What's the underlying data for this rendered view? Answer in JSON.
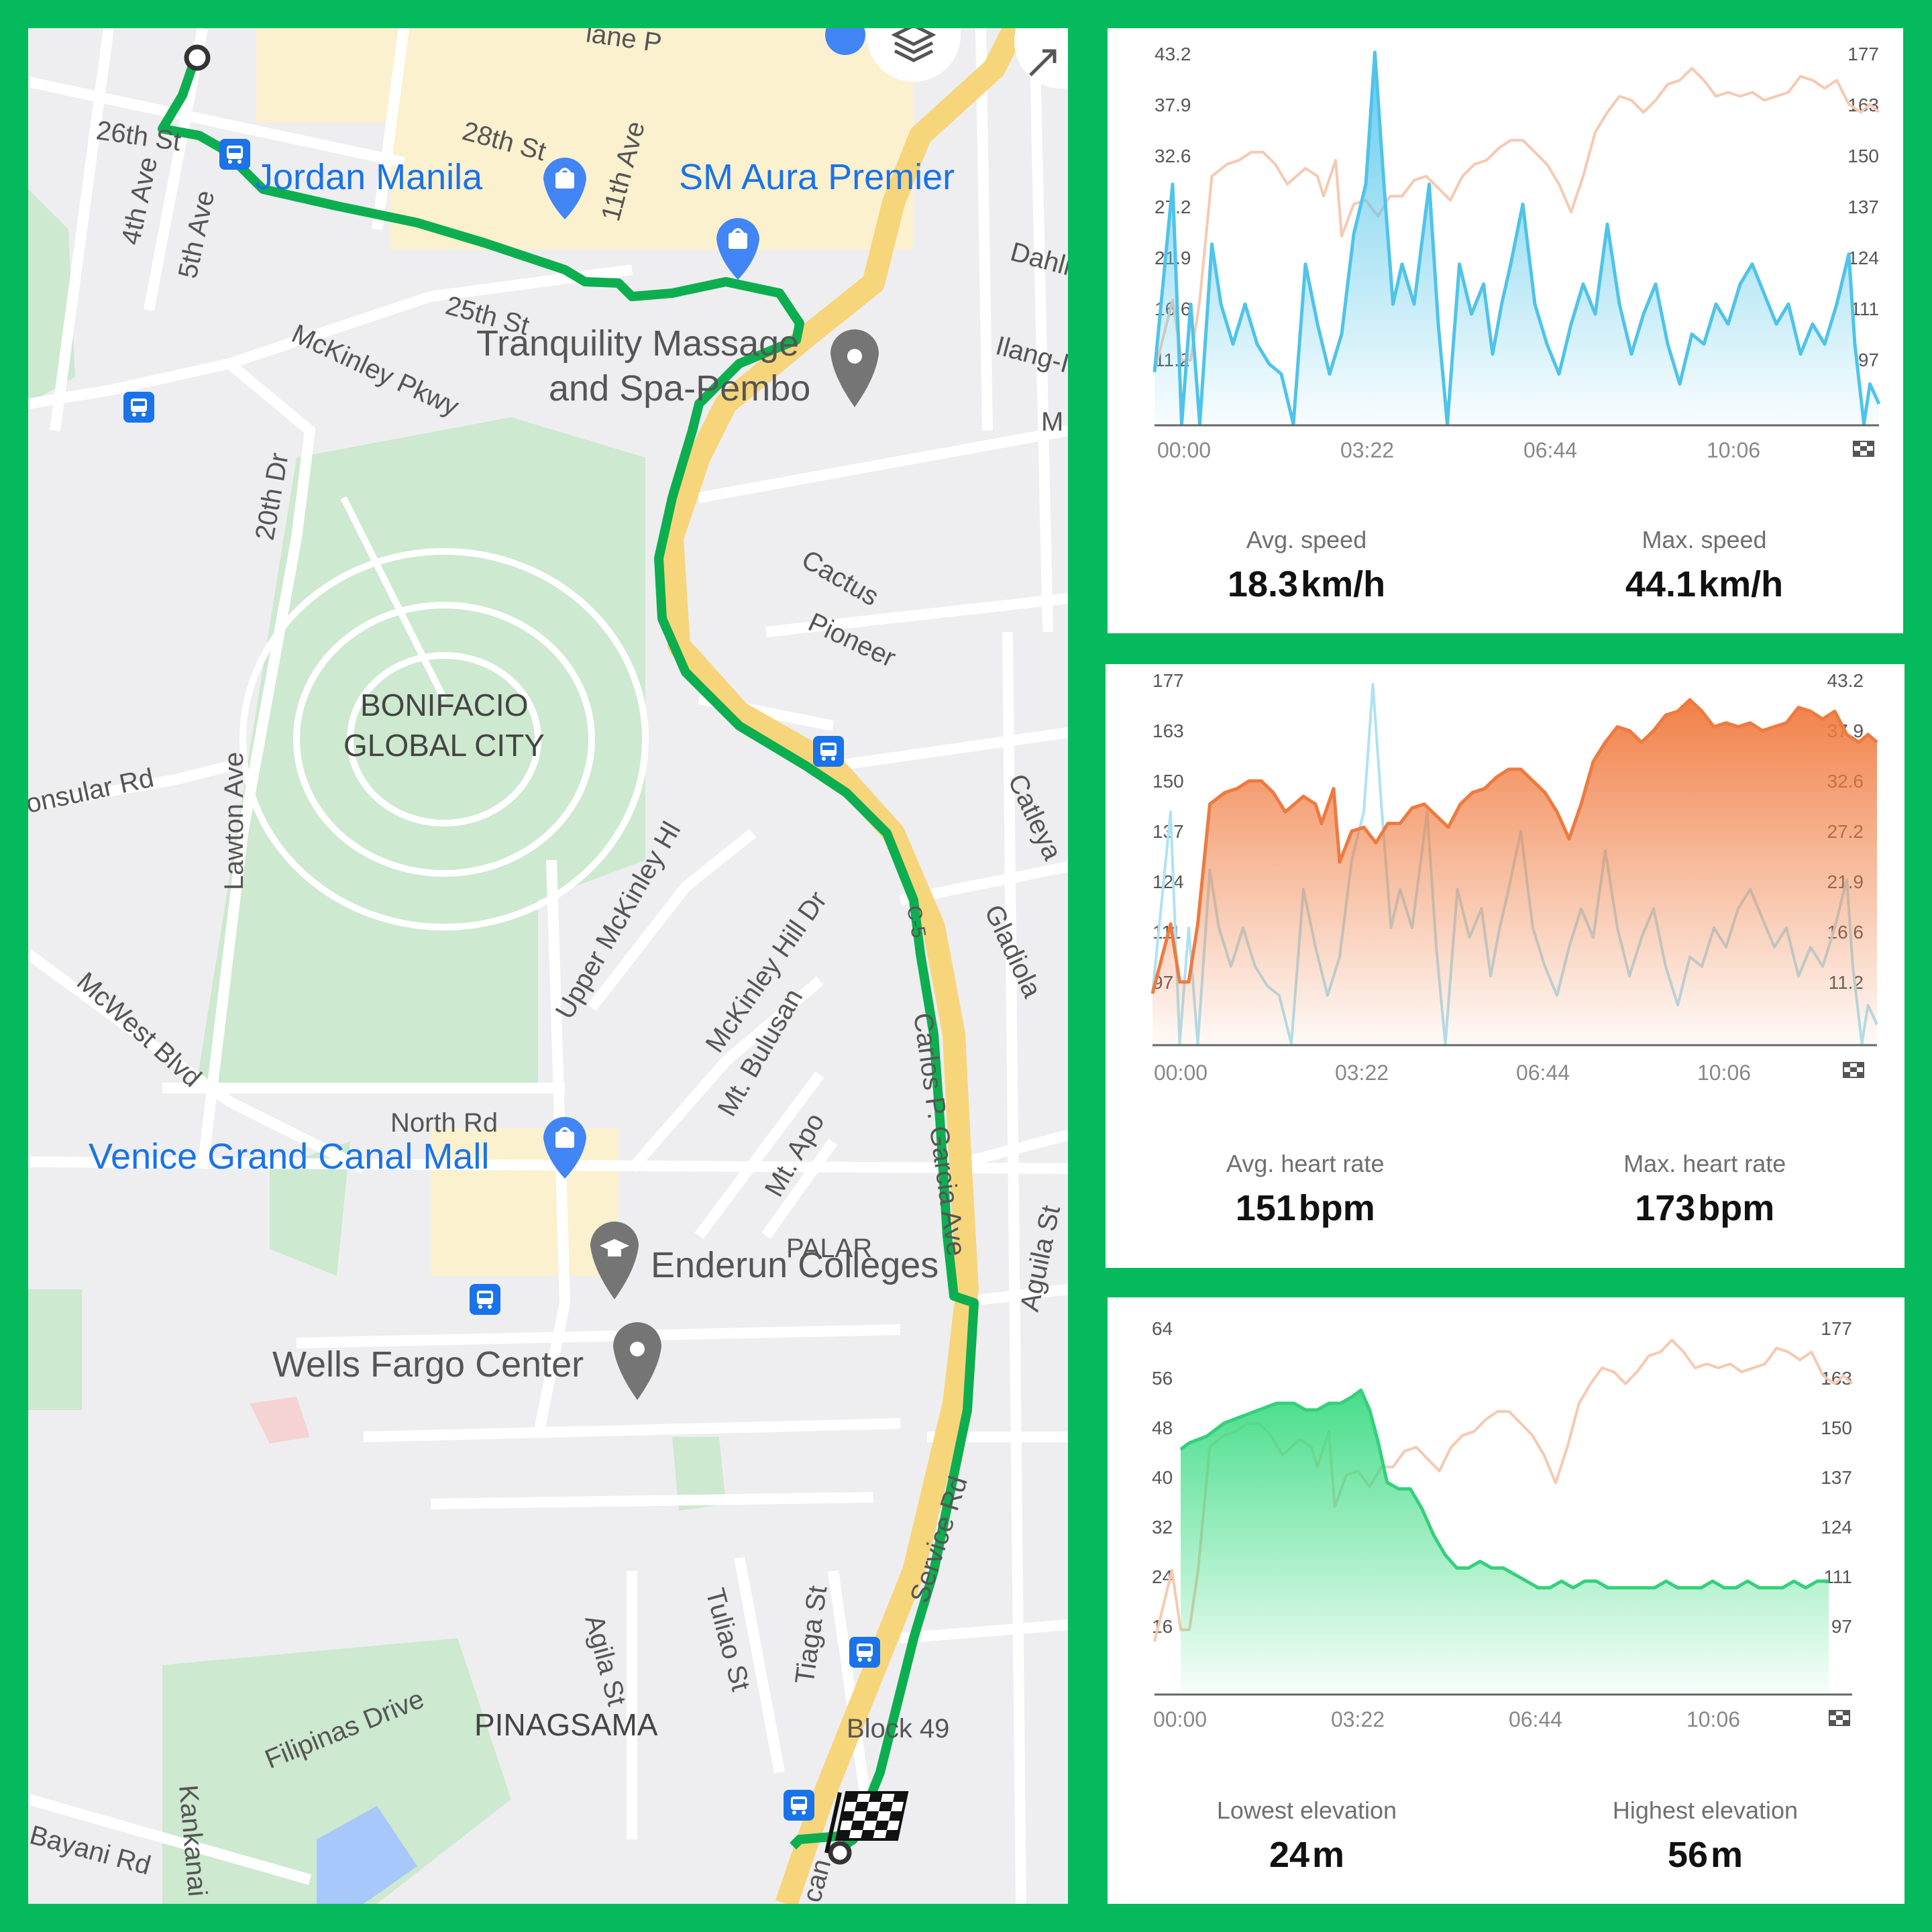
{
  "map": {
    "labels": {
      "st26": "26th St",
      "st28": "28th St",
      "ave4": "4th Ave",
      "ave5": "5th Ave",
      "ave11": "11th Ave",
      "st25": "25th St",
      "mckinley_pkwy": "McKinley Pkwy",
      "dahlia": "Dahli",
      "ilang": "Ilang-I",
      "m_cut": "M",
      "dr20": "20th Dr",
      "cactus": "Cactus",
      "pioneer": "Pioneer",
      "consular": "onsular Rd",
      "lawton": "Lawton Ave",
      "catleya": "Catleya",
      "upper_mckinley": "Upper McKinley Hl",
      "gladiola": "Gladiola",
      "mckinley_hill_dr": "McKinley Hill Dr",
      "c5": "C-5",
      "mcwest": "McWest Blvd",
      "north_rd": "North Rd",
      "mt_bulusan": "Mt. Bulusan",
      "mt_apo": "Mt. Apo",
      "carlos": "Carlos P. Garcia Ave",
      "palar": "PALAR",
      "aguila": "Aguila St",
      "service_rd": "Service Rd",
      "agila": "Agila St",
      "tuliao": "Tuliao St",
      "tiaga": "Tiaga St",
      "filipinas": "Filipinas Drive",
      "pinagsama": "PINAGSAMA",
      "block49": "Block 49",
      "kankanai": "Kankanai",
      "bayani": "Bayani Rd",
      "can": "can",
      "lane": "lane P",
      "bgc": "BONIFACIO",
      "bgc2": "GLOBAL CITY"
    },
    "pois": {
      "jordan": "Jordan Manila",
      "sm_aura": "SM Aura Premier",
      "tranquility_1": "Tranquility Massage",
      "tranquility_2": "and Spa-Pembo",
      "venice": "Venice Grand Canal Mall",
      "enderun": "Enderun Colleges",
      "wells": "Wells Fargo Center"
    },
    "colors": {
      "route": "#0DAE4F",
      "highway": "#F7D57A",
      "park": "#CDE9CF",
      "poi_blue": "#1A73E8",
      "commercial": "#FBF1CF"
    },
    "icons": [
      "start-point-icon",
      "finish-flag-icon",
      "bus-stop-icon",
      "shopping-bag-icon",
      "place-pin-icon",
      "school-icon",
      "layers-icon",
      "expand-icon"
    ]
  },
  "x_ticks": [
    "00:00",
    "03:22",
    "06:44",
    "10:06"
  ],
  "speed_panel": {
    "left_axis": [
      "43.2",
      "37.9",
      "32.6",
      "27.2",
      "21.9",
      "16.6",
      "11.2"
    ],
    "right_axis": [
      "177",
      "163",
      "150",
      "137",
      "124",
      "111",
      "97"
    ],
    "avg_label": "Avg. speed",
    "avg_value": "18.3",
    "avg_unit": "km/h",
    "max_label": "Max. speed",
    "max_value": "44.1",
    "max_unit": "km/h"
  },
  "hr_panel": {
    "left_axis": [
      "177",
      "163",
      "150",
      "137",
      "124",
      "111",
      "97"
    ],
    "right_axis": [
      "43.2",
      "37.9",
      "32.6",
      "27.2",
      "21.9",
      "16.6",
      "11.2"
    ],
    "avg_label": "Avg. heart rate",
    "avg_value": "151",
    "avg_unit": "bpm",
    "max_label": "Max. heart rate",
    "max_value": "173",
    "max_unit": "bpm"
  },
  "elev_panel": {
    "left_axis": [
      "64",
      "56",
      "48",
      "40",
      "32",
      "24",
      "16"
    ],
    "right_axis": [
      "177",
      "163",
      "150",
      "137",
      "124",
      "111",
      "97"
    ],
    "low_label": "Lowest elevation",
    "low_value": "24",
    "low_unit": "m",
    "high_label": "Highest elevation",
    "high_value": "56",
    "high_unit": "m"
  },
  "chart_data": [
    {
      "type": "area",
      "x_unit": "mm:ss",
      "x_ticks": [
        "00:00",
        "03:22",
        "06:44",
        "10:06"
      ],
      "primary": "speed",
      "primary_color": "#5AC8EC",
      "secondary": "heart_rate",
      "secondary_color": "#F6C9B0",
      "ylim_left": [
        6,
        43.2
      ],
      "ylim_right": [
        84,
        177
      ]
    },
    {
      "type": "area",
      "x_unit": "mm:ss",
      "x_ticks": [
        "00:00",
        "03:22",
        "06:44",
        "10:06"
      ],
      "primary": "heart_rate",
      "primary_color": "#F07A3E",
      "secondary": "speed",
      "secondary_color": "#AEE2F2",
      "ylim_left": [
        84,
        177
      ],
      "ylim_right": [
        6,
        43.2
      ]
    },
    {
      "type": "area",
      "x_unit": "mm:ss",
      "x_ticks": [
        "00:00",
        "03:22",
        "06:44",
        "10:06"
      ],
      "primary": "elevation",
      "primary_color": "#3DDC84",
      "secondary": "heart_rate",
      "secondary_color": "#F6C9B0",
      "ylim_left": [
        8,
        64
      ],
      "ylim_right": [
        84,
        177
      ]
    }
  ],
  "series": {
    "speed": [
      [
        0,
        11.2
      ],
      [
        0.3,
        30.0
      ],
      [
        0.45,
        6.0
      ],
      [
        0.6,
        18.0
      ],
      [
        0.75,
        6.0
      ],
      [
        0.95,
        24.0
      ],
      [
        1.1,
        18.0
      ],
      [
        1.3,
        14.0
      ],
      [
        1.5,
        18.0
      ],
      [
        1.7,
        14.0
      ],
      [
        1.9,
        12.0
      ],
      [
        2.1,
        11.0
      ],
      [
        2.3,
        6.0
      ],
      [
        2.5,
        22.0
      ],
      [
        2.7,
        16.0
      ],
      [
        2.9,
        11.0
      ],
      [
        3.1,
        15.0
      ],
      [
        3.3,
        25.0
      ],
      [
        3.5,
        30.0
      ],
      [
        3.65,
        43.2
      ],
      [
        3.8,
        30.0
      ],
      [
        3.95,
        18.0
      ],
      [
        4.1,
        22.0
      ],
      [
        4.3,
        18.0
      ],
      [
        4.55,
        30.0
      ],
      [
        4.7,
        16.0
      ],
      [
        4.85,
        6.0
      ],
      [
        5.05,
        22.0
      ],
      [
        5.25,
        17.0
      ],
      [
        5.45,
        20.0
      ],
      [
        5.6,
        13.0
      ],
      [
        5.75,
        18.0
      ],
      [
        5.9,
        22.0
      ],
      [
        6.1,
        28.0
      ],
      [
        6.3,
        18.0
      ],
      [
        6.5,
        14.0
      ],
      [
        6.7,
        11.0
      ],
      [
        6.9,
        16.0
      ],
      [
        7.1,
        20.0
      ],
      [
        7.3,
        17.0
      ],
      [
        7.5,
        26.0
      ],
      [
        7.7,
        18.0
      ],
      [
        7.9,
        13.0
      ],
      [
        8.1,
        17.0
      ],
      [
        8.3,
        20.0
      ],
      [
        8.5,
        14.0
      ],
      [
        8.7,
        10.0
      ],
      [
        8.9,
        15.0
      ],
      [
        9.1,
        14.0
      ],
      [
        9.3,
        18.0
      ],
      [
        9.5,
        16.0
      ],
      [
        9.7,
        20.0
      ],
      [
        9.9,
        22.0
      ],
      [
        10.1,
        19.0
      ],
      [
        10.3,
        16.0
      ],
      [
        10.5,
        18.0
      ],
      [
        10.7,
        13.0
      ],
      [
        10.9,
        16.0
      ],
      [
        11.1,
        14.0
      ],
      [
        11.3,
        18.0
      ],
      [
        11.5,
        23.0
      ],
      [
        11.6,
        14.0
      ],
      [
        11.75,
        6.0
      ],
      [
        11.85,
        10.0
      ],
      [
        12.0,
        8.0
      ]
    ],
    "heart_rate": [
      [
        0,
        97
      ],
      [
        0.3,
        115
      ],
      [
        0.45,
        100
      ],
      [
        0.6,
        100
      ],
      [
        0.75,
        115
      ],
      [
        0.95,
        146
      ],
      [
        1.2,
        149
      ],
      [
        1.4,
        150
      ],
      [
        1.6,
        152
      ],
      [
        1.8,
        152
      ],
      [
        2.0,
        149
      ],
      [
        2.2,
        144
      ],
      [
        2.5,
        148
      ],
      [
        2.7,
        146
      ],
      [
        2.8,
        141
      ],
      [
        3.0,
        150
      ],
      [
        3.1,
        131
      ],
      [
        3.3,
        139
      ],
      [
        3.5,
        140
      ],
      [
        3.7,
        136
      ],
      [
        3.9,
        141
      ],
      [
        4.1,
        141
      ],
      [
        4.3,
        145
      ],
      [
        4.5,
        146
      ],
      [
        4.7,
        143
      ],
      [
        4.9,
        140
      ],
      [
        5.1,
        146
      ],
      [
        5.3,
        149
      ],
      [
        5.5,
        150
      ],
      [
        5.7,
        153
      ],
      [
        5.9,
        155
      ],
      [
        6.1,
        155
      ],
      [
        6.3,
        152
      ],
      [
        6.5,
        149
      ],
      [
        6.7,
        144
      ],
      [
        6.9,
        137
      ],
      [
        7.1,
        146
      ],
      [
        7.3,
        157
      ],
      [
        7.5,
        162
      ],
      [
        7.7,
        166
      ],
      [
        7.9,
        165
      ],
      [
        8.1,
        162
      ],
      [
        8.3,
        165
      ],
      [
        8.5,
        169
      ],
      [
        8.7,
        170
      ],
      [
        8.9,
        173
      ],
      [
        9.1,
        170
      ],
      [
        9.3,
        166
      ],
      [
        9.5,
        167
      ],
      [
        9.7,
        166
      ],
      [
        9.9,
        167
      ],
      [
        10.1,
        165
      ],
      [
        10.3,
        166
      ],
      [
        10.5,
        167
      ],
      [
        10.7,
        171
      ],
      [
        10.9,
        170
      ],
      [
        11.1,
        168
      ],
      [
        11.3,
        170
      ],
      [
        11.5,
        164
      ],
      [
        11.7,
        162
      ],
      [
        11.85,
        164
      ],
      [
        12.0,
        162
      ]
    ],
    "elevation": [
      [
        0.45,
        45
      ],
      [
        0.6,
        46
      ],
      [
        0.9,
        47
      ],
      [
        1.2,
        49
      ],
      [
        1.5,
        50
      ],
      [
        1.8,
        51
      ],
      [
        2.1,
        52
      ],
      [
        2.4,
        52
      ],
      [
        2.6,
        51
      ],
      [
        2.8,
        51
      ],
      [
        3.0,
        52
      ],
      [
        3.2,
        52
      ],
      [
        3.4,
        53
      ],
      [
        3.55,
        54
      ],
      [
        3.7,
        51
      ],
      [
        3.85,
        46
      ],
      [
        4.0,
        40
      ],
      [
        4.2,
        39
      ],
      [
        4.4,
        39
      ],
      [
        4.6,
        36
      ],
      [
        4.8,
        32
      ],
      [
        5.0,
        29
      ],
      [
        5.2,
        27
      ],
      [
        5.4,
        27
      ],
      [
        5.6,
        28
      ],
      [
        5.8,
        27
      ],
      [
        6.0,
        27
      ],
      [
        6.2,
        26
      ],
      [
        6.4,
        25
      ],
      [
        6.6,
        24
      ],
      [
        6.8,
        24
      ],
      [
        7.0,
        25
      ],
      [
        7.2,
        24
      ],
      [
        7.4,
        25
      ],
      [
        7.6,
        25
      ],
      [
        7.8,
        24
      ],
      [
        8.0,
        24
      ],
      [
        8.2,
        24
      ],
      [
        8.4,
        24
      ],
      [
        8.6,
        24
      ],
      [
        8.8,
        25
      ],
      [
        9.0,
        24
      ],
      [
        9.2,
        24
      ],
      [
        9.4,
        24
      ],
      [
        9.6,
        25
      ],
      [
        9.8,
        24
      ],
      [
        10.0,
        24
      ],
      [
        10.2,
        25
      ],
      [
        10.4,
        24
      ],
      [
        10.6,
        24
      ],
      [
        10.8,
        24
      ],
      [
        11.0,
        25
      ],
      [
        11.2,
        24
      ],
      [
        11.4,
        25
      ],
      [
        11.6,
        25
      ]
    ]
  }
}
